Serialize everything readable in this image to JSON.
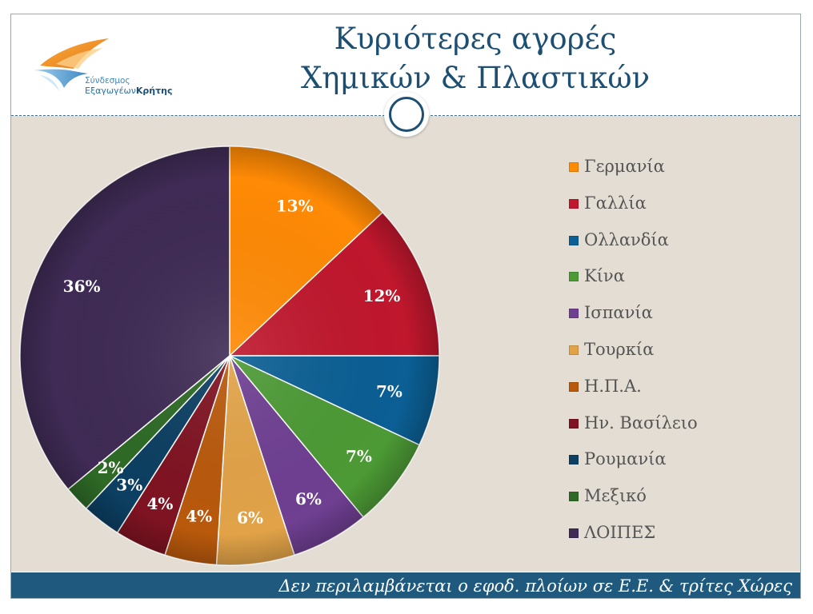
{
  "title": {
    "line1": "Κυριότερες αγορές",
    "line2": "Χημικών & Πλαστικών"
  },
  "logo": {
    "line1": "Σύνδεσμος",
    "line2a": "Εξαγωγέων",
    "line2b": "Κρήτης",
    "icon": "flame-wave-logo"
  },
  "footer": {
    "note": "Δεν περιλαμβάνεται ο εφοδ. πλοίων σε Ε.Ε. & τρίτες Χώρες"
  },
  "chart_data": {
    "type": "pie",
    "title": "Κυριότερες αγορές Χημικών & Πλαστικών",
    "legend_position": "right",
    "unit": "%",
    "slices": [
      {
        "label": "Γερμανία",
        "value": 13,
        "display": "13%",
        "color": "#ff8a05"
      },
      {
        "label": "Γαλλία",
        "value": 12,
        "display": "12%",
        "color": "#c0172d"
      },
      {
        "label": "Ολλανδία",
        "value": 7,
        "display": "7%",
        "color": "#0b5f94"
      },
      {
        "label": "Κίνα",
        "value": 7,
        "display": "7%",
        "color": "#4c9a35"
      },
      {
        "label": "Ισπανία",
        "value": 6,
        "display": "6%",
        "color": "#6f3f92"
      },
      {
        "label": "Τουρκία",
        "value": 6,
        "display": "6%",
        "color": "#e2a348"
      },
      {
        "label": "Η.Π.Α.",
        "value": 4,
        "display": "4%",
        "color": "#b9590c"
      },
      {
        "label": "Ην. Βασίλειο",
        "value": 4,
        "display": "4%",
        "color": "#7f1322"
      },
      {
        "label": "Ρουμανία",
        "value": 3,
        "display": "3%",
        "color": "#0c3f62"
      },
      {
        "label": "Μεξικό",
        "value": 2,
        "display": "2%",
        "color": "#2e6a26"
      },
      {
        "label": "ΛΟΙΠΕΣ",
        "value": 36,
        "display": "36%",
        "color": "#3f2b55"
      }
    ]
  }
}
